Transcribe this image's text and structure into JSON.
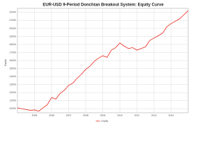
{
  "chart_data": {
    "type": "line",
    "title": "EUR-USD 9-Period Donchian Breakout System: Equity Curve",
    "y_label": "Equity",
    "x": [
      2004,
      2004.25,
      2004.5,
      2004.75,
      2005,
      2005.25,
      2005.5,
      2005.75,
      2006,
      2006.25,
      2006.5,
      2006.75,
      2007,
      2007.25,
      2007.5,
      2007.75,
      2008,
      2008.25,
      2008.5,
      2008.75,
      2009,
      2009.25,
      2009.5,
      2009.75,
      2010,
      2010.25,
      2010.5,
      2010.75,
      2011,
      2011.25,
      2011.5,
      2011.75,
      2012,
      2012.25,
      2012.5,
      2012.75,
      2013,
      2013.25,
      2013.5,
      2013.75,
      2014
    ],
    "series": [
      {
        "name": "Equity",
        "color": "#e8261c",
        "values": [
          10100,
          10000,
          9900,
          9800,
          9850,
          9700,
          10100,
          10500,
          11400,
          11200,
          11900,
          12300,
          12900,
          13200,
          13800,
          14300,
          14900,
          15300,
          15900,
          16300,
          16600,
          16400,
          17300,
          17600,
          18200,
          17800,
          17500,
          17600,
          17300,
          17500,
          17700,
          18500,
          18800,
          19100,
          19400,
          20200,
          20600,
          20900,
          21200,
          21700,
          22200
        ]
      }
    ],
    "xlim": [
      2004,
      2014
    ],
    "xticks": [
      2005,
      2006,
      2007,
      2008,
      2009,
      2010,
      2011,
      2012,
      2013
    ],
    "ylim": [
      9500,
      22500
    ],
    "yticks": [
      10000,
      11000,
      12000,
      13000,
      14000,
      15000,
      16000,
      17000,
      18000,
      19000,
      20000,
      21000,
      22000
    ],
    "grid": true,
    "legend": "bottom"
  }
}
